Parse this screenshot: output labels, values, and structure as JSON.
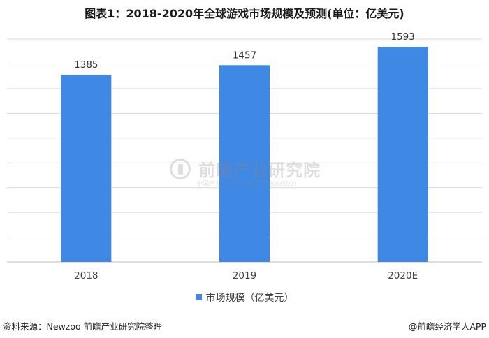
{
  "title": "图表1：2018-2020年全球游戏市场规模及预测(单位：亿美元)",
  "colors": {
    "bar": "#3f88e4",
    "grid": "#d9d9d9",
    "axis": "#bfbfbf"
  },
  "chart_data": {
    "type": "bar",
    "categories": [
      "2018",
      "2019",
      "2020E"
    ],
    "series": [
      {
        "name": "市场规模（亿美元）",
        "values": [
          1385,
          1457,
          1593
        ]
      }
    ],
    "data_labels": [
      "1385",
      "1457",
      "1593"
    ],
    "ylim": [
      0,
      1650
    ],
    "grid": true,
    "legend": "bottom-center",
    "xlabel": "",
    "ylabel": ""
  },
  "legend": {
    "label": "市场规模（亿美元）"
  },
  "watermark": {
    "name": "前瞻产业研究院",
    "sub": "中国产业咨询领导者(股票:839599)"
  },
  "footer": {
    "source": "资料来源：Newzoo  前瞻产业研究院整理",
    "credit": "@前瞻经济学人APP"
  }
}
